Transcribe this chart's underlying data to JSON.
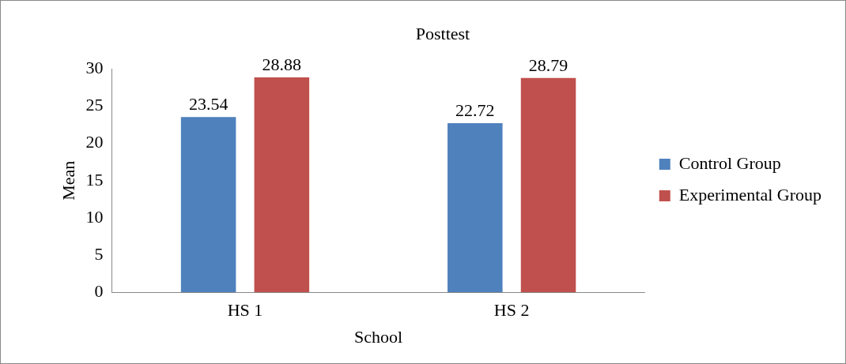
{
  "chart_data": {
    "type": "bar",
    "title": "Posttest",
    "xlabel": "School",
    "ylabel": "Mean",
    "categories": [
      "HS 1",
      "HS 2"
    ],
    "series": [
      {
        "name": "Control Group",
        "color": "#4f81bd",
        "values": [
          23.54,
          22.72
        ]
      },
      {
        "name": "Experimental Group",
        "color": "#c0504d",
        "values": [
          28.88,
          28.79
        ]
      }
    ],
    "ylim": [
      0,
      30
    ],
    "yticks": [
      0,
      5,
      10,
      15,
      20,
      25,
      30
    ],
    "grid": false,
    "legend": "right",
    "data_labels": true
  }
}
